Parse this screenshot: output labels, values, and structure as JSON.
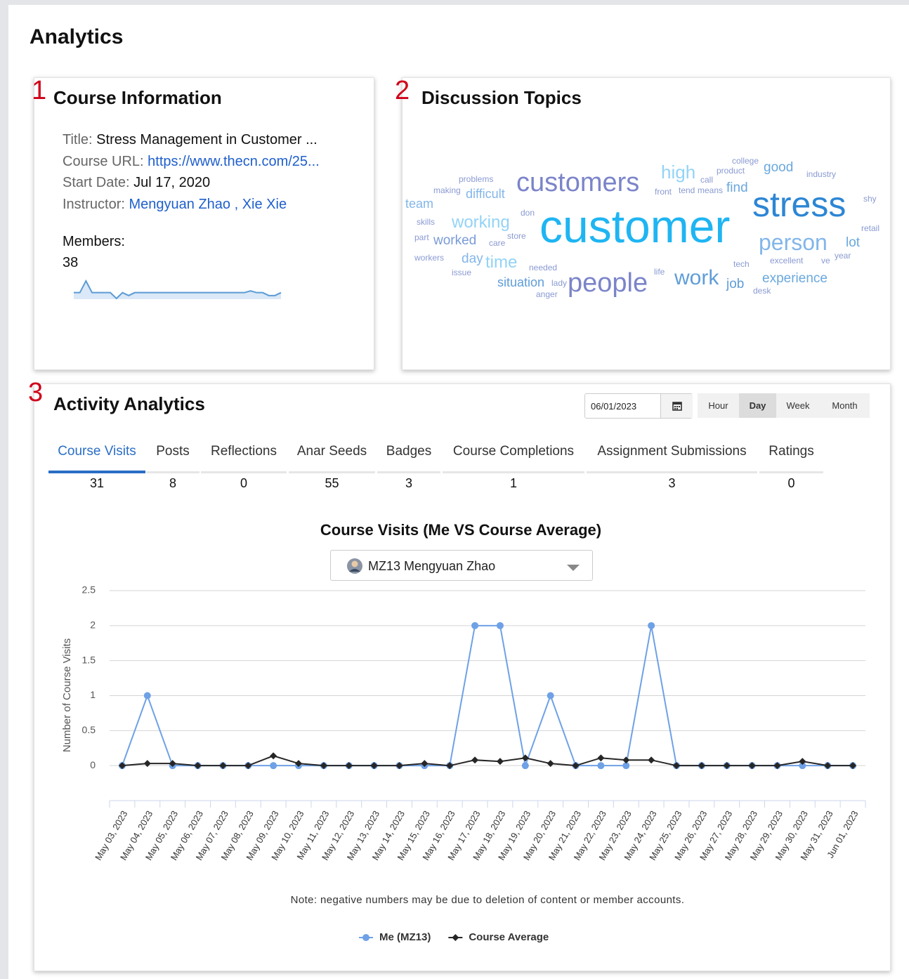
{
  "header": {
    "title": "Analytics"
  },
  "course_info": {
    "number": "1",
    "title": "Course Information",
    "fields": [
      {
        "label": "Title:",
        "value": "Stress Management in Customer ...",
        "link": false
      },
      {
        "label": "Course URL:",
        "value": "https://www.thecn.com/25...",
        "link": true
      },
      {
        "label": "Start Date:",
        "value": "Jul 17, 2020",
        "link": false
      }
    ],
    "instructor": {
      "label": "Instructor:",
      "names": [
        "Mengyuan Zhao",
        "Xie Xie"
      ],
      "separator": ","
    },
    "members": {
      "label": "Members:",
      "count": 38,
      "sparkline": {
        "color": "#5b9bd5",
        "values": [
          1,
          1,
          3,
          1,
          1,
          1,
          1,
          0,
          1,
          0.5,
          1,
          1,
          1,
          1,
          1,
          1,
          1,
          1,
          1,
          1,
          1,
          1,
          1,
          1,
          1,
          1,
          1,
          1,
          1,
          1.3,
          1,
          1,
          0.5,
          0.5,
          1
        ]
      }
    }
  },
  "discussion_topics": {
    "number": "2",
    "title": "Discussion Topics",
    "words": [
      {
        "text": "customer",
        "weight": 66,
        "color": "#1fb5f2"
      },
      {
        "text": "stress",
        "weight": 50,
        "color": "#2d86d4"
      },
      {
        "text": "customers",
        "weight": 38,
        "color": "#7b84c9"
      },
      {
        "text": "people",
        "weight": 38,
        "color": "#7b84c9"
      },
      {
        "text": "person",
        "weight": 32,
        "color": "#82b6ea"
      },
      {
        "text": "work",
        "weight": 30,
        "color": "#5f9dd8"
      },
      {
        "text": "high",
        "weight": 26,
        "color": "#93d3f6"
      },
      {
        "text": "working",
        "weight": 24,
        "color": "#93d3f6"
      },
      {
        "text": "time",
        "weight": 24,
        "color": "#93d3f6"
      },
      {
        "text": "experience",
        "weight": 19,
        "color": "#6aa8de"
      },
      {
        "text": "good",
        "weight": 19,
        "color": "#6aa8de"
      },
      {
        "text": "find",
        "weight": 19,
        "color": "#6aa8de"
      },
      {
        "text": "lot",
        "weight": 19,
        "color": "#6aa8de"
      },
      {
        "text": "job",
        "weight": 19,
        "color": "#5f9dd8"
      },
      {
        "text": "worked",
        "weight": 19,
        "color": "#7a9bd6"
      },
      {
        "text": "day",
        "weight": 19,
        "color": "#82b6ea"
      },
      {
        "text": "difficult",
        "weight": 18,
        "color": "#82b6ea"
      },
      {
        "text": "team",
        "weight": 18,
        "color": "#82b6ea"
      },
      {
        "text": "situation",
        "weight": 18,
        "color": "#5f9dd8"
      },
      {
        "text": "problems",
        "weight": 12,
        "color": "#8a9ad2"
      },
      {
        "text": "making",
        "weight": 12,
        "color": "#8a9ad2"
      },
      {
        "text": "college",
        "weight": 12,
        "color": "#8a9ad2"
      },
      {
        "text": "product",
        "weight": 12,
        "color": "#8a9ad2"
      },
      {
        "text": "call",
        "weight": 12,
        "color": "#8a9ad2"
      },
      {
        "text": "front",
        "weight": 12,
        "color": "#8a9ad2"
      },
      {
        "text": "tend",
        "weight": 12,
        "color": "#8a9ad2"
      },
      {
        "text": "means",
        "weight": 12,
        "color": "#8a9ad2"
      },
      {
        "text": "industry",
        "weight": 12,
        "color": "#8a9ad2"
      },
      {
        "text": "shy",
        "weight": 12,
        "color": "#8a9ad2"
      },
      {
        "text": "retail",
        "weight": 12,
        "color": "#8a9ad2"
      },
      {
        "text": "year",
        "weight": 12,
        "color": "#8a9ad2"
      },
      {
        "text": "ve",
        "weight": 12,
        "color": "#8a9ad2"
      },
      {
        "text": "excellent",
        "weight": 12,
        "color": "#8a9ad2"
      },
      {
        "text": "tech",
        "weight": 12,
        "color": "#8a9ad2"
      },
      {
        "text": "desk",
        "weight": 12,
        "color": "#8a9ad2"
      },
      {
        "text": "life",
        "weight": 12,
        "color": "#8a9ad2"
      },
      {
        "text": "needed",
        "weight": 12,
        "color": "#8a9ad2"
      },
      {
        "text": "lady",
        "weight": 12,
        "color": "#8a9ad2"
      },
      {
        "text": "anger",
        "weight": 12,
        "color": "#8a9ad2"
      },
      {
        "text": "issue",
        "weight": 12,
        "color": "#8a9ad2"
      },
      {
        "text": "workers",
        "weight": 12,
        "color": "#8a9ad2"
      },
      {
        "text": "part",
        "weight": 12,
        "color": "#8a9ad2"
      },
      {
        "text": "care",
        "weight": 12,
        "color": "#8a9ad2"
      },
      {
        "text": "store",
        "weight": 12,
        "color": "#8a9ad2"
      },
      {
        "text": "don",
        "weight": 12,
        "color": "#8a9ad2"
      },
      {
        "text": "skills",
        "weight": 12,
        "color": "#8a9ad2"
      }
    ]
  },
  "activity": {
    "number": "3",
    "title": "Activity Analytics",
    "date": "06/01/2023",
    "periods": [
      "Hour",
      "Day",
      "Week",
      "Month"
    ],
    "active_period": 1,
    "tabs": [
      {
        "label": "Course Visits",
        "count": 31
      },
      {
        "label": "Posts",
        "count": 8
      },
      {
        "label": "Reflections",
        "count": 0
      },
      {
        "label": "Anar Seeds",
        "count": 55
      },
      {
        "label": "Badges",
        "count": 3
      },
      {
        "label": "Course Completions",
        "count": 1
      },
      {
        "label": "Assignment Submissions",
        "count": 3
      },
      {
        "label": "Ratings",
        "count": 0
      }
    ],
    "active_tab": 0,
    "member_select": "MZ13 Mengyuan Zhao",
    "note": "Note: negative numbers may be due to deletion of content or member accounts."
  },
  "chart_data": {
    "type": "line",
    "title": "Course Visits (Me VS Course Average)",
    "y_label": "Number of Course Visits",
    "categories": [
      "May 03, 2023",
      "May 04, 2023",
      "May 05, 2023",
      "May 06, 2023",
      "May 07, 2023",
      "May 08, 2023",
      "May 09, 2023",
      "May 10, 2023",
      "May 11, 2023",
      "May 12, 2023",
      "May 13, 2023",
      "May 14, 2023",
      "May 15, 2023",
      "May 16, 2023",
      "May 17, 2023",
      "May 18, 2023",
      "May 19, 2023",
      "May 20, 2023",
      "May 21, 2023",
      "May 22, 2023",
      "May 23, 2023",
      "May 24, 2023",
      "May 25, 2023",
      "May 26, 2023",
      "May 27, 2023",
      "May 28, 2023",
      "May 29, 2023",
      "May 30, 2023",
      "May 31, 2023",
      "Jun 01, 2023"
    ],
    "series": [
      {
        "name": "Me (MZ13)",
        "color": "#6ea1e6",
        "marker": "circle",
        "values": [
          0,
          1,
          0,
          0,
          0,
          0,
          0,
          0,
          0,
          0,
          0,
          0,
          0,
          0,
          2,
          2,
          0,
          1,
          0,
          0,
          0,
          2,
          0,
          0,
          0,
          0,
          0,
          0,
          0,
          0
        ]
      },
      {
        "name": "Course Average",
        "color": "#262626",
        "marker": "diamond",
        "values": [
          0,
          0.03,
          0.03,
          0,
          0,
          0,
          0.14,
          0.03,
          0,
          0,
          0,
          0,
          0.03,
          0,
          0.08,
          0.06,
          0.11,
          0.03,
          0,
          0.11,
          0.08,
          0.08,
          0,
          0,
          0,
          0,
          0,
          0.06,
          0,
          0
        ]
      }
    ],
    "ylim": [
      -0.5,
      2.5
    ],
    "yticks": [
      0,
      0.5,
      1,
      1.5,
      2,
      2.5
    ],
    "grid": true,
    "legend": "bottom"
  }
}
